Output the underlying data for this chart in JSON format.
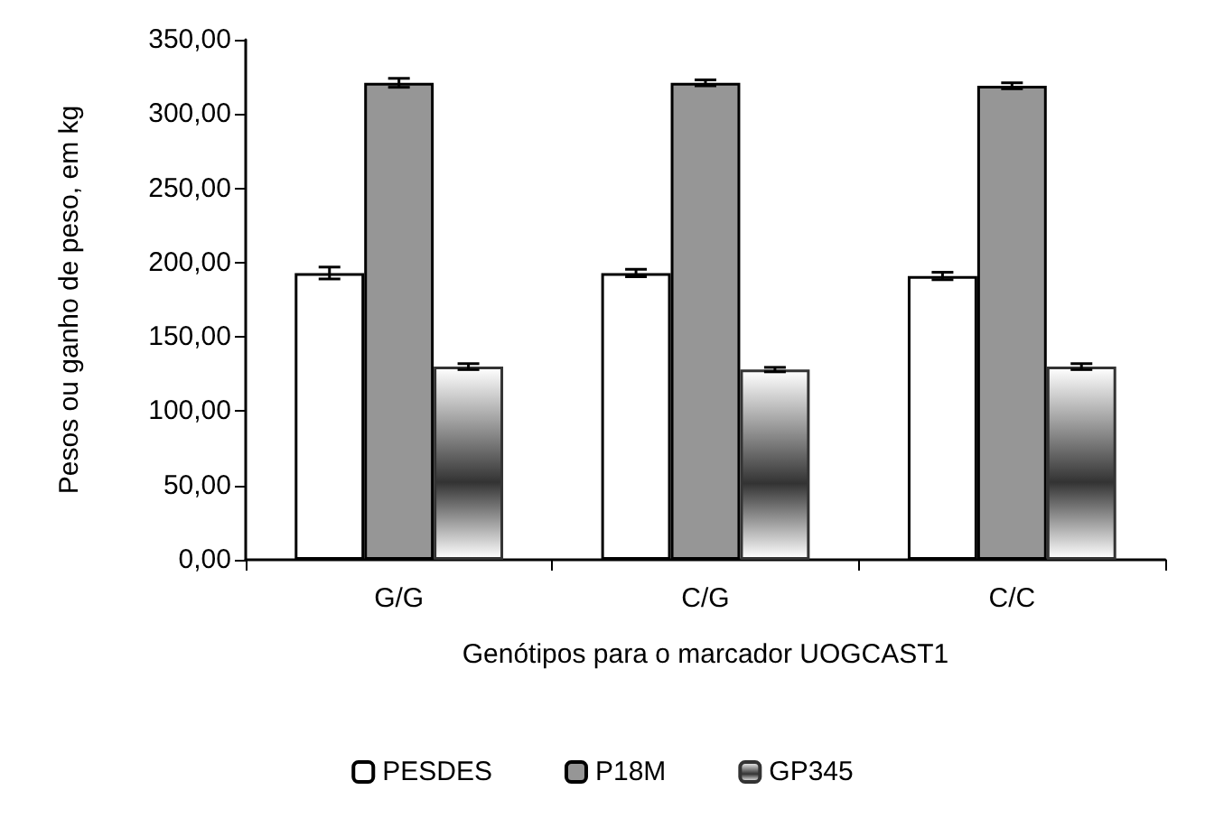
{
  "chart_data": {
    "type": "bar",
    "xlabel": "Genótipos para o marcador UOGCAST1",
    "ylabel": "Pesos ou ganho de peso, em kg",
    "categories": [
      "G/G",
      "C/G",
      "C/C"
    ],
    "series": [
      {
        "name": "PESDES",
        "color": "#ffffff",
        "values": [
          193,
          193,
          191
        ],
        "errors": [
          4,
          2.5,
          2.5
        ]
      },
      {
        "name": "P18M",
        "color": "#969696",
        "values": [
          321,
          321,
          319
        ],
        "errors": [
          3,
          2,
          2
        ]
      },
      {
        "name": "GP345",
        "color": "#333333",
        "values": [
          130,
          128,
          130
        ],
        "errors": [
          2,
          1.5,
          2
        ]
      }
    ],
    "ylim": [
      0,
      350
    ],
    "yticks": [
      {
        "value": 0,
        "label": "0,00"
      },
      {
        "value": 50,
        "label": "50,00"
      },
      {
        "value": 100,
        "label": "100,00"
      },
      {
        "value": 150,
        "label": "150,00"
      },
      {
        "value": 200,
        "label": "200,00"
      },
      {
        "value": 250,
        "label": "250,00"
      },
      {
        "value": 300,
        "label": "300,00"
      },
      {
        "value": 350,
        "label": "350,00"
      }
    ],
    "grid": false,
    "legend": "bottom"
  }
}
